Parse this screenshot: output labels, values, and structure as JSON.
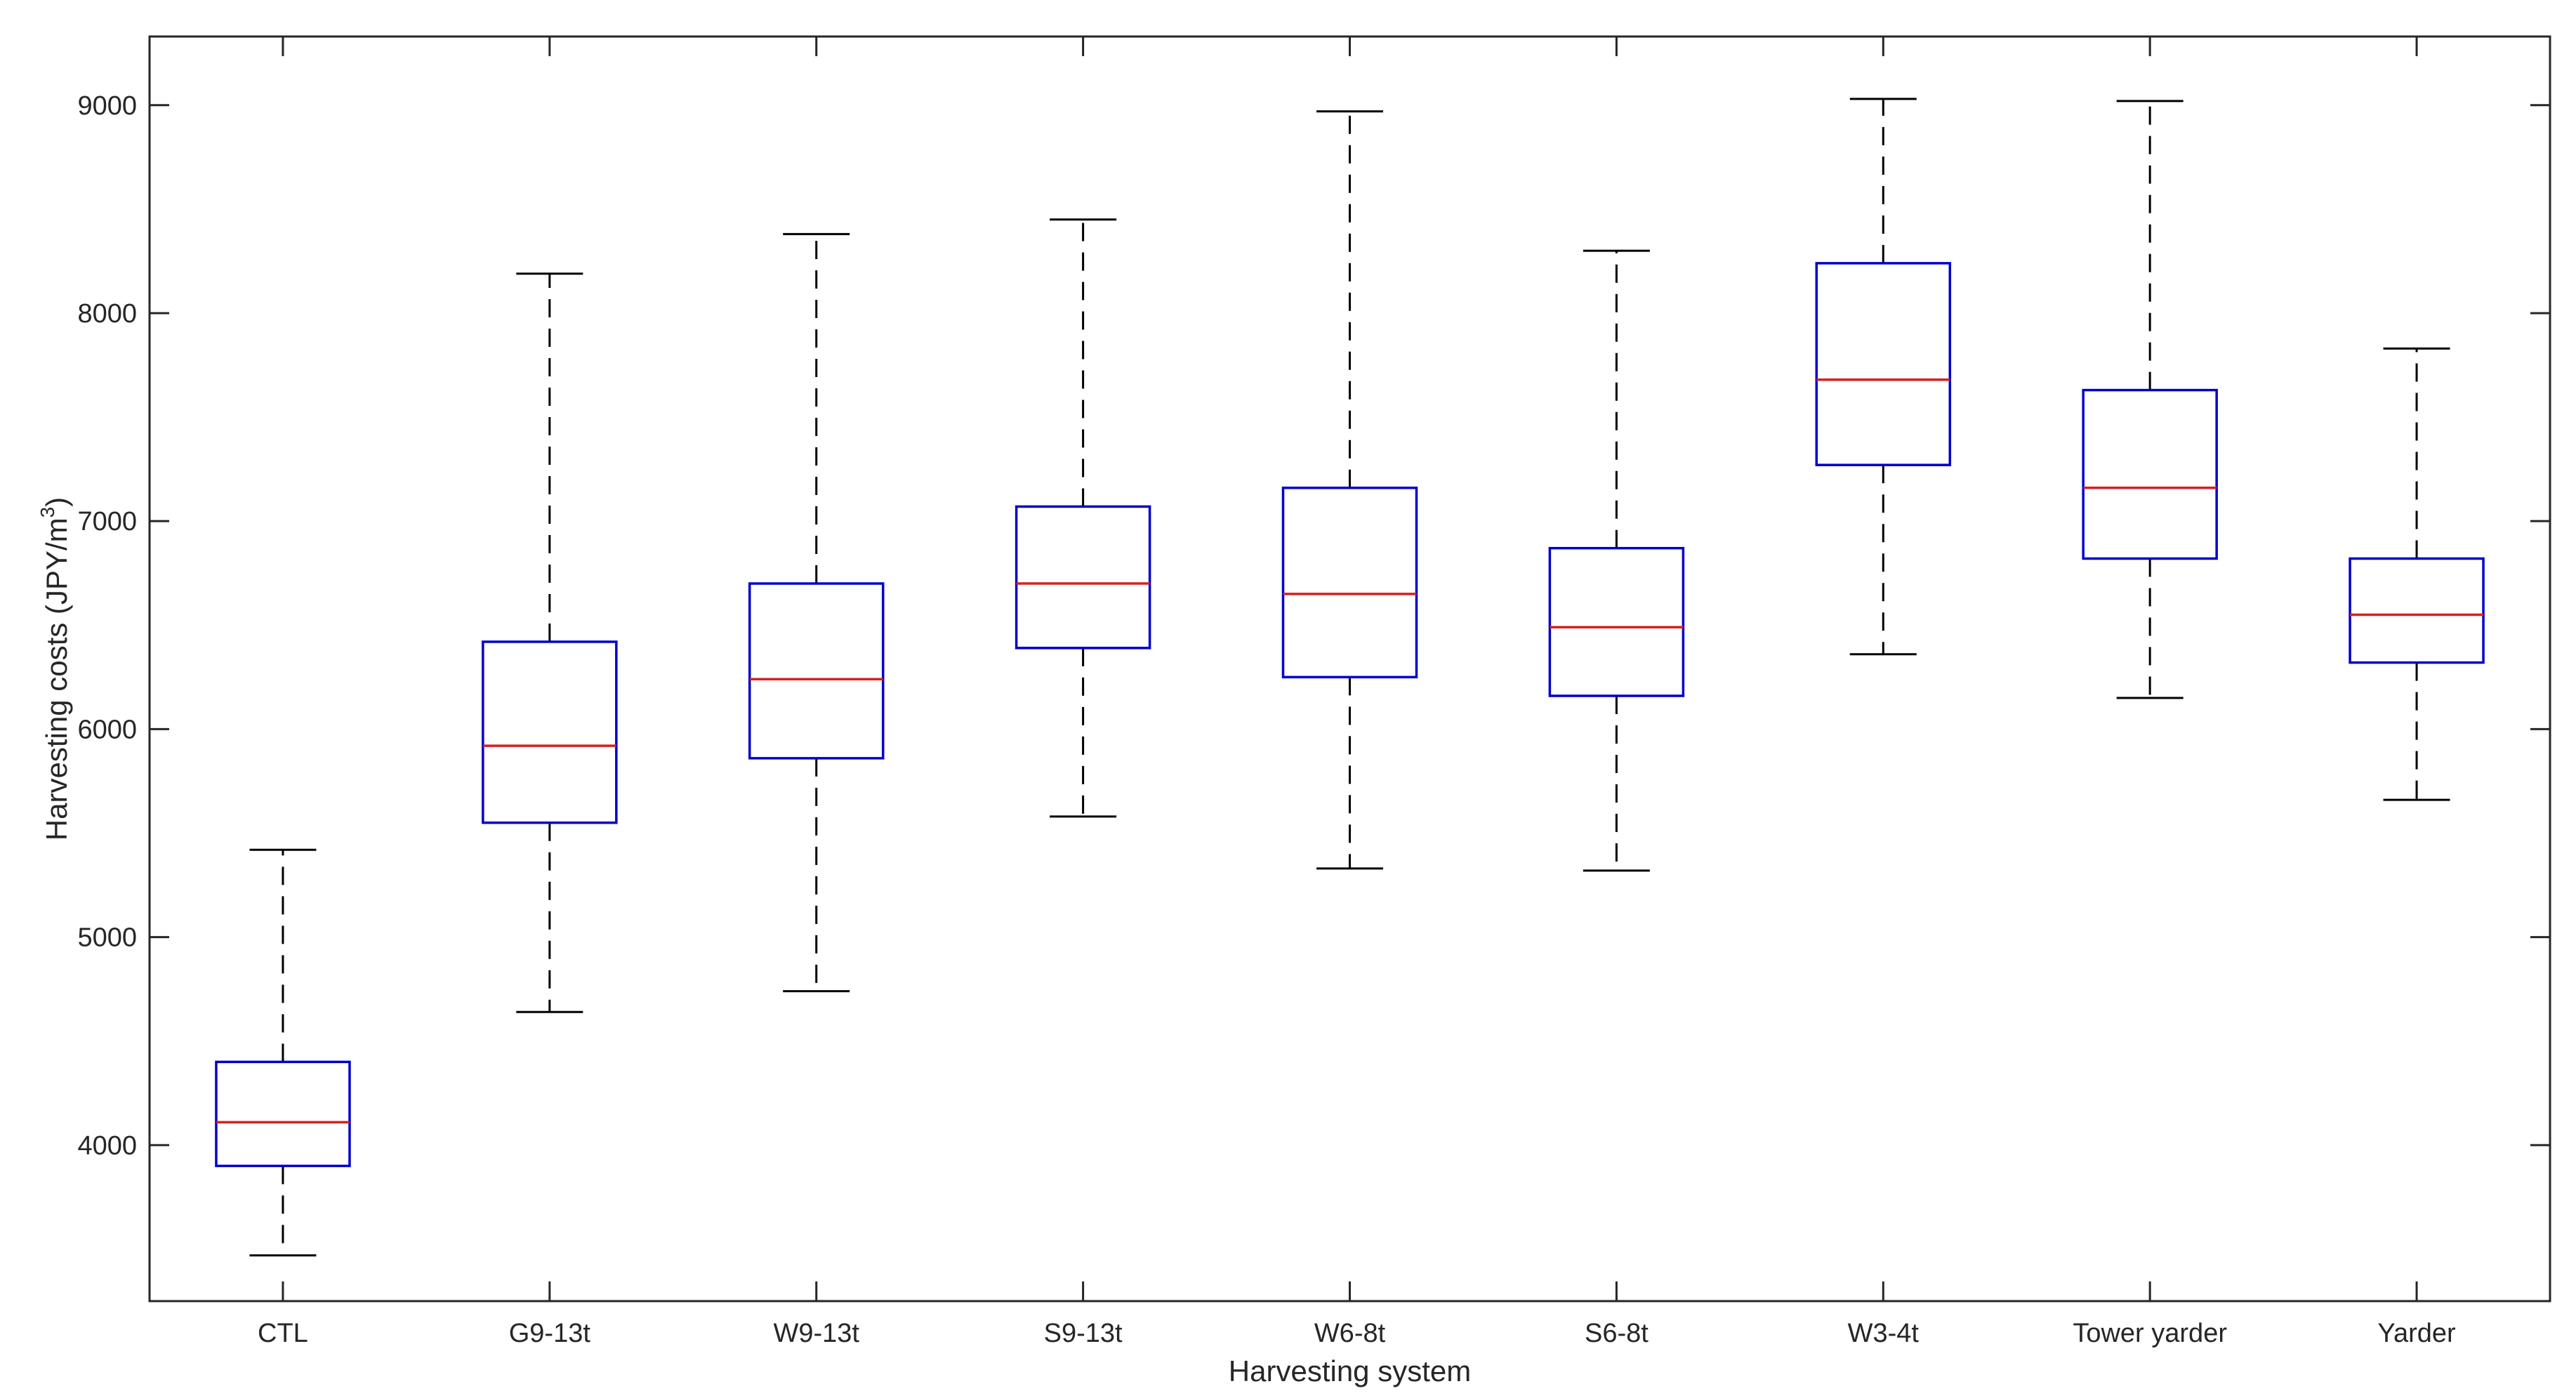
{
  "chart_data": {
    "type": "boxplot",
    "title": "",
    "xlabel": "Harvesting system",
    "ylabel": {
      "prefix": "Harvesting costs (JPY/m",
      "superscript": "3",
      "suffix": ")"
    },
    "ylim": [
      3250,
      9330
    ],
    "yticks": [
      4000,
      5000,
      6000,
      7000,
      8000,
      9000
    ],
    "grid": false,
    "colors": {
      "box": "#0000cc",
      "median": "#d62020",
      "whisker": "#000000",
      "axis": "#262626"
    },
    "categories": [
      "CTL",
      "G9-13t",
      "W9-13t",
      "S9-13t",
      "W6-8t",
      "S6-8t",
      "W3-4t",
      "Tower yarder",
      "Yarder"
    ],
    "boxes": [
      {
        "category": "CTL",
        "whisker_low": 3470,
        "q1": 3900,
        "median": 4110,
        "q3": 4400,
        "whisker_high": 5420
      },
      {
        "category": "G9-13t",
        "whisker_low": 4640,
        "q1": 5550,
        "median": 5920,
        "q3": 6420,
        "whisker_high": 8190
      },
      {
        "category": "W9-13t",
        "whisker_low": 4740,
        "q1": 5860,
        "median": 6240,
        "q3": 6700,
        "whisker_high": 8380
      },
      {
        "category": "S9-13t",
        "whisker_low": 5580,
        "q1": 6390,
        "median": 6700,
        "q3": 7070,
        "whisker_high": 8450
      },
      {
        "category": "W6-8t",
        "whisker_low": 5330,
        "q1": 6250,
        "median": 6650,
        "q3": 7160,
        "whisker_high": 8970
      },
      {
        "category": "S6-8t",
        "whisker_low": 5320,
        "q1": 6160,
        "median": 6490,
        "q3": 6870,
        "whisker_high": 8300
      },
      {
        "category": "W3-4t",
        "whisker_low": 6360,
        "q1": 7270,
        "median": 7680,
        "q3": 8240,
        "whisker_high": 9030
      },
      {
        "category": "Tower yarder",
        "whisker_low": 6150,
        "q1": 6820,
        "median": 7160,
        "q3": 7630,
        "whisker_high": 9020
      },
      {
        "category": "Yarder",
        "whisker_low": 5660,
        "q1": 6320,
        "median": 6550,
        "q3": 6820,
        "whisker_high": 7830
      }
    ]
  }
}
